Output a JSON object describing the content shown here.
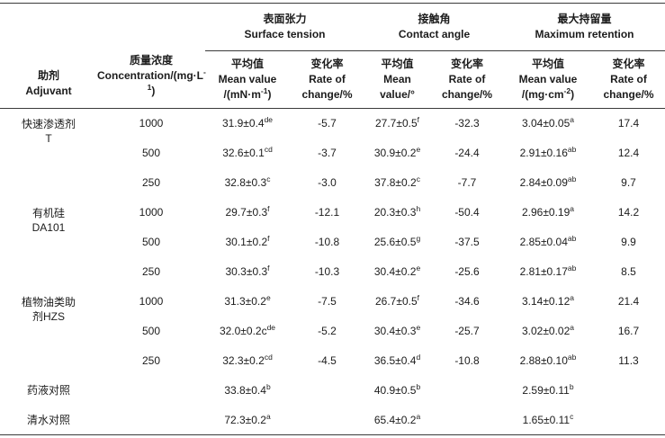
{
  "table": {
    "header": {
      "adjuvant": {
        "cn": "助剂",
        "en": "Adjuvant"
      },
      "concentration": {
        "cn": "质量浓度",
        "en_pre": "Concentration/(mg·L",
        "en_sup": "-1",
        "en_tail": ")"
      },
      "groups": [
        {
          "cn": "表面张力",
          "en": "Surface tension"
        },
        {
          "cn": "接触角",
          "en": "Contact angle"
        },
        {
          "cn": "最大持留量",
          "en": "Maximum retention"
        }
      ],
      "sub": [
        {
          "l1": "平均值",
          "l2": "Mean value",
          "l3_pre": "/(mN·m",
          "l3_sup": "-1",
          "l3_tail": ")"
        },
        {
          "l1": "变化率",
          "l2": "Rate of",
          "l3": "change/%"
        },
        {
          "l1": "平均值",
          "l2": "Mean",
          "l3": "value/°"
        },
        {
          "l1": "变化率",
          "l2": "Rate of",
          "l3": "change/%"
        },
        {
          "l1": "平均值",
          "l2": "Mean value",
          "l3_pre": "/(mg·cm",
          "l3_sup": "-2",
          "l3_tail": ")"
        },
        {
          "l1": "变化率",
          "l2": "Rate of",
          "l3": "change/%"
        }
      ]
    },
    "rows": [
      {
        "label": {
          "lines": [
            "快速渗透剂",
            "T"
          ],
          "span": 3
        },
        "conc": "1000",
        "st": {
          "v": "31.9±0.4",
          "s": "de"
        },
        "st_rate": "-5.7",
        "ca": {
          "v": "27.7±0.5",
          "s": "f"
        },
        "ca_rate": "-32.3",
        "mr": {
          "v": "3.04±0.05",
          "s": "a"
        },
        "mr_rate": "17.4"
      },
      {
        "conc": "500",
        "st": {
          "v": "32.6±0.1",
          "s": "cd"
        },
        "st_rate": "-3.7",
        "ca": {
          "v": "30.9±0.2",
          "s": "e"
        },
        "ca_rate": "-24.4",
        "mr": {
          "v": "2.91±0.16",
          "s": "ab"
        },
        "mr_rate": "12.4"
      },
      {
        "conc": "250",
        "st": {
          "v": "32.8±0.3",
          "s": "c"
        },
        "st_rate": "-3.0",
        "ca": {
          "v": "37.8±0.2",
          "s": "c"
        },
        "ca_rate": "-7.7",
        "mr": {
          "v": "2.84±0.09",
          "s": "ab"
        },
        "mr_rate": "9.7"
      },
      {
        "label": {
          "lines": [
            "有机硅",
            "DA101"
          ],
          "span": 3
        },
        "conc": "1000",
        "st": {
          "v": "29.7±0.3",
          "s": "f"
        },
        "st_rate": "-12.1",
        "ca": {
          "v": "20.3±0.3",
          "s": "h"
        },
        "ca_rate": "-50.4",
        "mr": {
          "v": "2.96±0.19",
          "s": "a"
        },
        "mr_rate": "14.2"
      },
      {
        "conc": "500",
        "st": {
          "v": "30.1±0.2",
          "s": "f"
        },
        "st_rate": "-10.8",
        "ca": {
          "v": "25.6±0.5",
          "s": "g"
        },
        "ca_rate": "-37.5",
        "mr": {
          "v": "2.85±0.04",
          "s": "ab"
        },
        "mr_rate": "9.9"
      },
      {
        "conc": "250",
        "st": {
          "v": "30.3±0.3",
          "s": "f"
        },
        "st_rate": "-10.3",
        "ca": {
          "v": "30.4±0.2",
          "s": "e"
        },
        "ca_rate": "-25.6",
        "mr": {
          "v": "2.81±0.17",
          "s": "ab"
        },
        "mr_rate": "8.5"
      },
      {
        "label": {
          "lines": [
            "植物油类助",
            "剂HZS"
          ],
          "span": 3
        },
        "conc": "1000",
        "st": {
          "v": "31.3±0.2",
          "s": "e"
        },
        "st_rate": "-7.5",
        "ca": {
          "v": "26.7±0.5",
          "s": "f"
        },
        "ca_rate": "-34.6",
        "mr": {
          "v": "3.14±0.12",
          "s": "a"
        },
        "mr_rate": "21.4"
      },
      {
        "conc": "500",
        "st": {
          "v": "32.0±0.2c",
          "s": "de"
        },
        "st_rate": "-5.2",
        "ca": {
          "v": "30.4±0.3",
          "s": "e"
        },
        "ca_rate": "-25.7",
        "mr": {
          "v": "3.02±0.02",
          "s": "a"
        },
        "mr_rate": "16.7"
      },
      {
        "conc": "250",
        "st": {
          "v": "32.3±0.2",
          "s": "cd"
        },
        "st_rate": "-4.5",
        "ca": {
          "v": "36.5±0.4",
          "s": "d"
        },
        "ca_rate": "-10.8",
        "mr": {
          "v": "2.88±0.10",
          "s": "ab"
        },
        "mr_rate": "11.3"
      },
      {
        "label": {
          "lines": [
            "药液对照"
          ],
          "span": 1
        },
        "conc": "",
        "st": {
          "v": "33.8±0.4",
          "s": "b"
        },
        "st_rate": "",
        "ca": {
          "v": "40.9±0.5",
          "s": "b"
        },
        "ca_rate": "",
        "mr": {
          "v": "2.59±0.11",
          "s": "b"
        },
        "mr_rate": ""
      },
      {
        "label": {
          "lines": [
            "清水对照"
          ],
          "span": 1
        },
        "conc": "",
        "st": {
          "v": "72.3±0.2",
          "s": "a"
        },
        "st_rate": "",
        "ca": {
          "v": "65.4±0.2",
          "s": "a"
        },
        "ca_rate": "",
        "mr": {
          "v": "1.65±0.11",
          "s": "c"
        },
        "mr_rate": ""
      }
    ]
  }
}
